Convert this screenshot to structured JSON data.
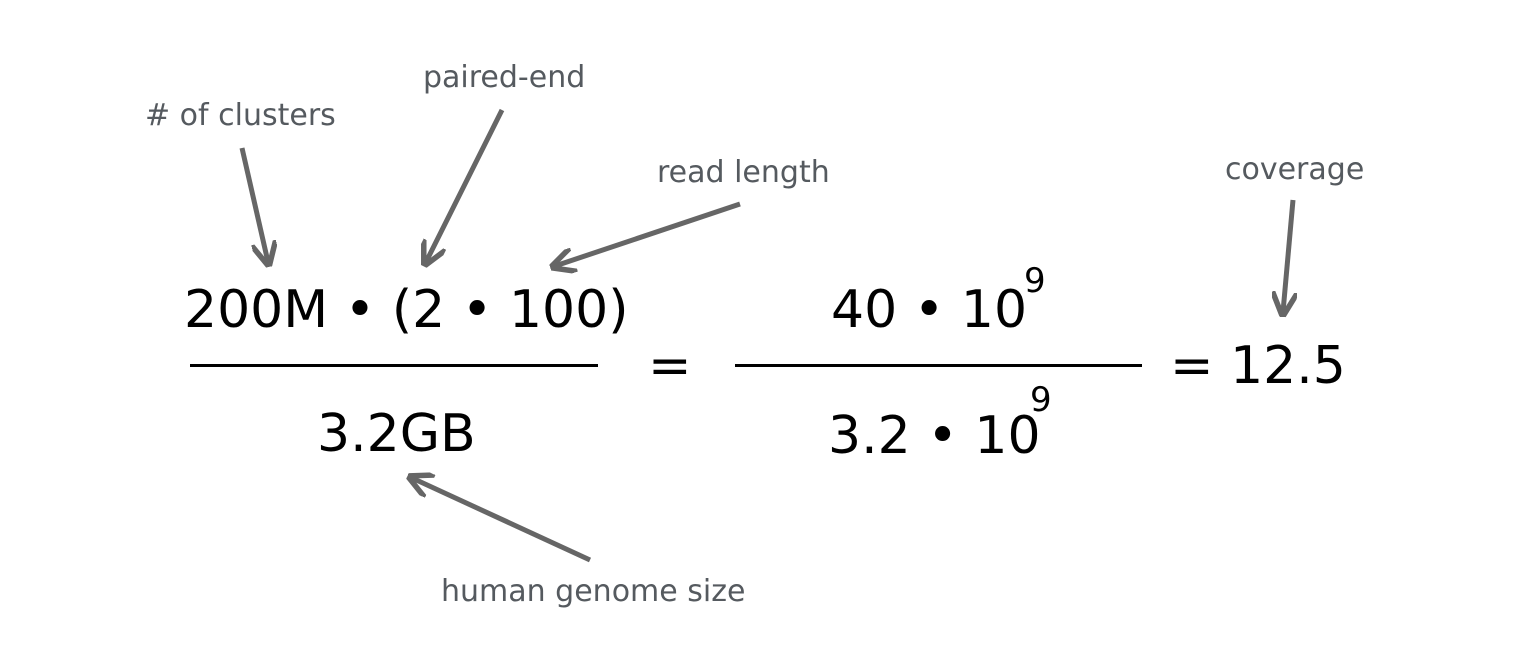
{
  "equation": {
    "numerator_1": "200M • (2 • 100)",
    "denominator_1": "3.2GB",
    "equals_1": "=",
    "numerator_2": "40 • 10",
    "numerator_2_exponent": "9",
    "denominator_2": "3.2 • 10",
    "denominator_2_exponent": "9",
    "result": "= 12.5"
  },
  "annotations": {
    "clusters": "# of clusters",
    "paired_end": "paired-end",
    "read_length": "read length",
    "coverage": "coverage",
    "genome_size": "human genome size"
  },
  "colors": {
    "annotation_text": "#555a5f",
    "arrow": "#666666",
    "equation_text": "#000000"
  }
}
